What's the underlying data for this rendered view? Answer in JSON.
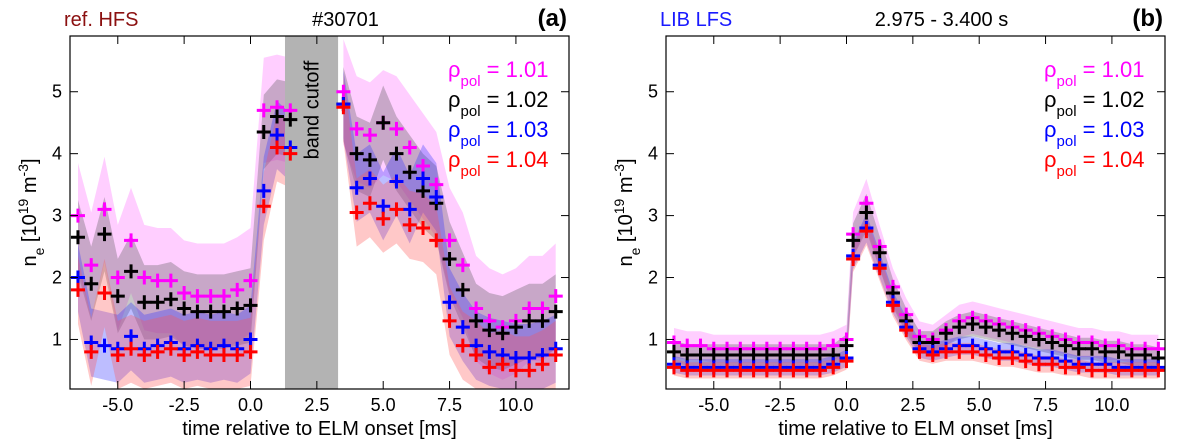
{
  "chart_data": [
    {
      "type": "scatter",
      "panel_label": "(a)",
      "corner_label": "ref. HFS",
      "corner_color": "#8B1010",
      "title": "#30701",
      "xlabel": "time relative to ELM onset [ms]",
      "ylabel": {
        "main": "n",
        "sub": "e",
        "rest": " [10",
        "sup": "19",
        "rest2": " m",
        "sup2": "-3",
        "close": "]"
      },
      "xlim": [
        -6.8,
        12.0
      ],
      "ylim": [
        0.2,
        5.9
      ],
      "xticks": [
        -5.0,
        -2.5,
        0.0,
        2.5,
        5.0,
        7.5,
        10.0
      ],
      "xtick_labels": [
        "-5.0",
        "-2.5",
        "0.0",
        "2.5",
        "5.0",
        "7.5",
        "10.0"
      ],
      "yticks": [
        1,
        2,
        3,
        4,
        5
      ],
      "ytick_labels": [
        "1",
        "2",
        "3",
        "4",
        "5"
      ],
      "shaded_region": {
        "x": [
          1.3,
          3.3
        ],
        "label": "band cutoff",
        "color": "#b3b3b3"
      },
      "legend_position": "top-right",
      "series": [
        {
          "name": "1.01",
          "color": "#ff00ff",
          "band_color": "#ff66ff",
          "x": [
            -6.5,
            -6.0,
            -5.5,
            -5.0,
            -4.5,
            -4.0,
            -3.5,
            -3.0,
            -2.5,
            -2.0,
            -1.5,
            -1.0,
            -0.5,
            0.0,
            0.5,
            1.0,
            1.5,
            3.5,
            4.0,
            4.5,
            5.0,
            5.5,
            6.0,
            6.5,
            7.0,
            7.5,
            8.0,
            8.5,
            9.0,
            9.5,
            10.0,
            10.5,
            11.0,
            11.5
          ],
          "y": [
            3.0,
            2.2,
            3.1,
            2.0,
            2.6,
            2.0,
            1.95,
            1.95,
            1.75,
            1.7,
            1.7,
            1.7,
            1.8,
            1.95,
            4.7,
            4.75,
            4.7,
            5.0,
            4.4,
            4.3,
            4.5,
            4.4,
            4.1,
            3.8,
            3.5,
            2.6,
            2.2,
            1.5,
            1.3,
            1.2,
            1.3,
            1.5,
            1.5,
            1.7
          ]
        },
        {
          "name": "1.02",
          "color": "#000000",
          "band_color": "#555555",
          "x": [
            -6.5,
            -6.0,
            -5.5,
            -5.0,
            -4.5,
            -4.0,
            -3.5,
            -3.0,
            -2.5,
            -2.0,
            -1.5,
            -1.0,
            -0.5,
            0.0,
            0.5,
            1.0,
            1.5,
            3.5,
            4.0,
            4.5,
            5.0,
            5.5,
            6.0,
            6.5,
            7.0,
            7.5,
            8.0,
            8.5,
            9.0,
            9.5,
            10.0,
            10.5,
            11.0,
            11.5
          ],
          "y": [
            2.65,
            1.9,
            2.7,
            1.7,
            2.1,
            1.6,
            1.6,
            1.65,
            1.5,
            1.45,
            1.45,
            1.45,
            1.5,
            1.55,
            4.35,
            4.6,
            4.55,
            4.8,
            4.0,
            3.9,
            4.5,
            4.0,
            3.7,
            3.4,
            3.2,
            2.3,
            1.8,
            1.3,
            1.15,
            1.1,
            1.2,
            1.3,
            1.3,
            1.45
          ]
        },
        {
          "name": "1.03",
          "color": "#0000ff",
          "band_color": "#3333ff",
          "x": [
            -6.5,
            -6.0,
            -5.5,
            -5.0,
            -4.5,
            -4.0,
            -3.5,
            -3.0,
            -2.5,
            -2.0,
            -1.5,
            -1.0,
            -0.5,
            0.0,
            0.5,
            1.0,
            1.5,
            3.5,
            4.0,
            4.5,
            5.0,
            5.5,
            6.0,
            6.5,
            7.0,
            7.5,
            8.0,
            8.5,
            9.0,
            9.5,
            10.0,
            10.5,
            11.0,
            11.5
          ],
          "y": [
            2.0,
            0.95,
            0.9,
            0.85,
            1.05,
            0.85,
            0.9,
            0.95,
            0.85,
            0.9,
            0.85,
            0.9,
            0.85,
            1.0,
            3.4,
            4.3,
            4.1,
            4.8,
            3.45,
            3.6,
            3.15,
            3.55,
            3.1,
            3.6,
            3.3,
            1.6,
            1.2,
            0.9,
            0.8,
            0.75,
            0.7,
            0.7,
            0.75,
            0.85
          ]
        },
        {
          "name": "1.04",
          "color": "#ff0000",
          "band_color": "#ff5555",
          "x": [
            -6.5,
            -6.0,
            -5.5,
            -5.0,
            -4.5,
            -4.0,
            -3.5,
            -3.0,
            -2.5,
            -2.0,
            -1.5,
            -1.0,
            -0.5,
            0.0,
            0.5,
            1.0,
            1.5,
            3.5,
            4.0,
            4.5,
            5.0,
            5.5,
            6.0,
            6.5,
            7.0,
            7.5,
            8.0,
            8.5,
            9.0,
            9.5,
            10.0,
            10.5,
            11.0,
            11.5
          ],
          "y": [
            1.8,
            0.8,
            1.75,
            0.75,
            0.85,
            0.75,
            0.8,
            0.85,
            0.75,
            0.8,
            0.75,
            0.75,
            0.75,
            0.8,
            3.15,
            4.1,
            4.0,
            4.75,
            3.05,
            3.2,
            2.95,
            3.1,
            2.85,
            2.8,
            2.6,
            1.3,
            0.9,
            0.75,
            0.55,
            0.6,
            0.5,
            0.5,
            0.6,
            0.75
          ]
        }
      ]
    },
    {
      "type": "scatter",
      "panel_label": "(b)",
      "corner_label": "LIB LFS",
      "corner_color": "#1a1aff",
      "title": "2.975 - 3.400 s",
      "xlabel": "time relative to ELM onset [ms]",
      "ylabel": {
        "main": "n",
        "sub": "e",
        "rest": " [10",
        "sup": "19",
        "rest2": " m",
        "sup2": "-3",
        "close": "]"
      },
      "xlim": [
        -6.8,
        12.0
      ],
      "ylim": [
        0.2,
        5.9
      ],
      "xticks": [
        -5.0,
        -2.5,
        0.0,
        2.5,
        5.0,
        7.5,
        10.0
      ],
      "xtick_labels": [
        "-5.0",
        "-2.5",
        "0.0",
        "2.5",
        "5.0",
        "7.5",
        "10.0"
      ],
      "yticks": [
        1,
        2,
        3,
        4,
        5
      ],
      "ytick_labels": [
        "1",
        "2",
        "3",
        "4",
        "5"
      ],
      "legend_position": "top-right",
      "series": [
        {
          "name": "1.01",
          "color": "#ff00ff",
          "band_color": "#ff66ff",
          "x": [
            -6.5,
            -6.0,
            -5.5,
            -5.0,
            -4.5,
            -4.0,
            -3.5,
            -3.0,
            -2.5,
            -2.0,
            -1.5,
            -1.0,
            -0.5,
            0.0,
            0.25,
            0.75,
            1.25,
            1.75,
            2.25,
            2.75,
            3.25,
            3.75,
            4.25,
            4.75,
            5.25,
            5.75,
            6.25,
            6.75,
            7.25,
            7.75,
            8.25,
            8.75,
            9.25,
            9.75,
            10.25,
            10.75,
            11.25,
            11.75
          ],
          "y": [
            0.95,
            0.9,
            0.9,
            0.85,
            0.85,
            0.85,
            0.85,
            0.85,
            0.85,
            0.85,
            0.85,
            0.85,
            0.9,
            1.0,
            2.7,
            3.2,
            2.5,
            1.85,
            1.4,
            1.05,
            1.0,
            1.15,
            1.3,
            1.35,
            1.3,
            1.25,
            1.2,
            1.15,
            1.1,
            1.05,
            1.0,
            0.95,
            0.95,
            0.9,
            0.9,
            0.85,
            0.85,
            0.85
          ]
        },
        {
          "name": "1.02",
          "color": "#000000",
          "band_color": "#555555",
          "x": [
            -6.5,
            -6.0,
            -5.5,
            -5.0,
            -4.5,
            -4.0,
            -3.5,
            -3.0,
            -2.5,
            -2.0,
            -1.5,
            -1.0,
            -0.5,
            0.0,
            0.25,
            0.75,
            1.25,
            1.75,
            2.25,
            2.75,
            3.25,
            3.75,
            4.25,
            4.75,
            5.25,
            5.75,
            6.25,
            6.75,
            7.25,
            7.75,
            8.25,
            8.75,
            9.25,
            9.75,
            10.25,
            10.75,
            11.25,
            11.75
          ],
          "y": [
            0.8,
            0.75,
            0.75,
            0.75,
            0.75,
            0.75,
            0.75,
            0.75,
            0.75,
            0.75,
            0.75,
            0.75,
            0.75,
            0.9,
            2.6,
            3.05,
            2.4,
            1.75,
            1.3,
            0.95,
            0.95,
            1.1,
            1.2,
            1.25,
            1.2,
            1.15,
            1.1,
            1.05,
            1.0,
            0.95,
            0.9,
            0.85,
            0.85,
            0.8,
            0.8,
            0.75,
            0.75,
            0.7
          ]
        },
        {
          "name": "1.03",
          "color": "#0000ff",
          "band_color": "#3333ff",
          "x": [
            -6.5,
            -6.0,
            -5.5,
            -5.0,
            -4.5,
            -4.0,
            -3.5,
            -3.0,
            -2.5,
            -2.0,
            -1.5,
            -1.0,
            -0.5,
            0.0,
            0.25,
            0.75,
            1.25,
            1.75,
            2.25,
            2.75,
            3.25,
            3.75,
            4.25,
            4.75,
            5.25,
            5.75,
            6.25,
            6.75,
            7.25,
            7.75,
            8.25,
            8.75,
            9.25,
            9.75,
            10.25,
            10.75,
            11.25,
            11.75
          ],
          "y": [
            0.6,
            0.55,
            0.55,
            0.55,
            0.55,
            0.55,
            0.55,
            0.55,
            0.55,
            0.55,
            0.55,
            0.55,
            0.6,
            0.7,
            2.35,
            2.8,
            2.2,
            1.6,
            1.2,
            0.85,
            0.8,
            0.85,
            0.9,
            0.9,
            0.85,
            0.8,
            0.8,
            0.75,
            0.7,
            0.7,
            0.65,
            0.6,
            0.6,
            0.6,
            0.55,
            0.55,
            0.55,
            0.55
          ]
        },
        {
          "name": "1.04",
          "color": "#ff0000",
          "band_color": "#ff5555",
          "x": [
            -6.5,
            -6.0,
            -5.5,
            -5.0,
            -4.5,
            -4.0,
            -3.5,
            -3.0,
            -2.5,
            -2.0,
            -1.5,
            -1.0,
            -0.5,
            0.0,
            0.25,
            0.75,
            1.25,
            1.75,
            2.25,
            2.75,
            3.25,
            3.75,
            4.25,
            4.75,
            5.25,
            5.75,
            6.25,
            6.75,
            7.25,
            7.75,
            8.25,
            8.75,
            9.25,
            9.75,
            10.25,
            10.75,
            11.25,
            11.75
          ],
          "y": [
            0.55,
            0.5,
            0.5,
            0.5,
            0.5,
            0.5,
            0.5,
            0.5,
            0.5,
            0.5,
            0.5,
            0.5,
            0.55,
            0.65,
            2.3,
            2.75,
            2.15,
            1.55,
            1.15,
            0.8,
            0.75,
            0.8,
            0.8,
            0.8,
            0.75,
            0.7,
            0.7,
            0.65,
            0.6,
            0.6,
            0.55,
            0.55,
            0.5,
            0.5,
            0.5,
            0.5,
            0.5,
            0.5
          ]
        }
      ]
    }
  ],
  "legend_prefix": {
    "main": "ρ",
    "sub": "pol",
    "eq": " = "
  }
}
